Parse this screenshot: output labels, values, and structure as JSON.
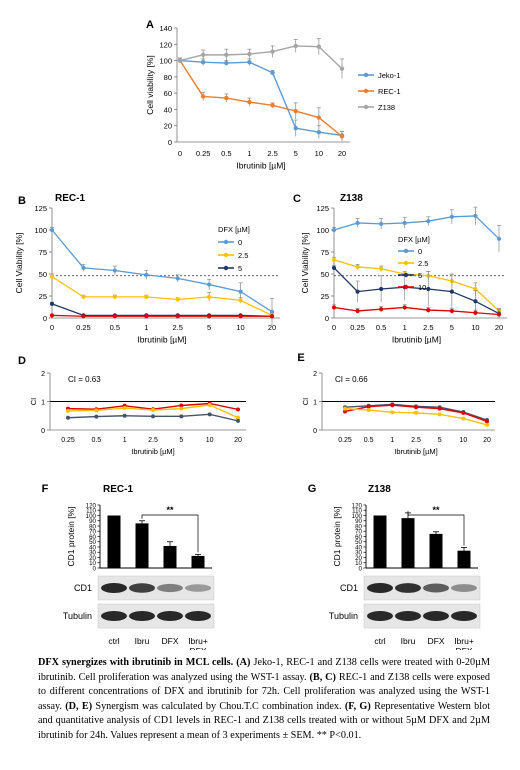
{
  "panels": {
    "A": {
      "letter": "A"
    },
    "B": {
      "letter": "B",
      "title": "REC-1"
    },
    "C": {
      "letter": "C",
      "title": "Z138"
    },
    "D": {
      "letter": "D",
      "ci_text": "CI = 0.63"
    },
    "E": {
      "letter": "E",
      "ci_text": "CI = 0.66"
    },
    "F": {
      "letter": "F",
      "title": "REC-1"
    },
    "G": {
      "letter": "G",
      "title": "Z138"
    }
  },
  "chart_data": [
    {
      "id": "A",
      "type": "line",
      "x": [
        "0",
        "0.25",
        "0.5",
        "1",
        "2.5",
        "5",
        "10",
        "20"
      ],
      "xlabel": "Ibrutinib [µM]",
      "ylabel": "Cell viability [%]",
      "ylim": [
        0,
        140
      ],
      "yticks": [
        0,
        20,
        40,
        60,
        80,
        100,
        120,
        140
      ],
      "legend": "right",
      "series": [
        {
          "name": "Jeko-1",
          "color": "#5b9bd5",
          "values": [
            100,
            98,
            97,
            98,
            85,
            17,
            12,
            8
          ],
          "err": [
            3,
            4,
            3,
            4,
            3,
            10,
            8,
            5
          ]
        },
        {
          "name": "REC-1",
          "color": "#ed7d31",
          "values": [
            100,
            56,
            54,
            49,
            45,
            38,
            30,
            7
          ],
          "err": [
            3,
            5,
            5,
            5,
            3,
            10,
            12,
            6
          ]
        },
        {
          "name": "Z138",
          "color": "#a5a5a5",
          "values": [
            100,
            107,
            107,
            108,
            111,
            118,
            117,
            90
          ],
          "err": [
            3,
            6,
            7,
            6,
            7,
            8,
            10,
            12
          ]
        }
      ]
    },
    {
      "id": "B",
      "type": "line",
      "x": [
        "0",
        "0.25",
        "0.5",
        "1",
        "2.5",
        "5",
        "10",
        "20"
      ],
      "xlabel": "Ibrutinib [µM]",
      "ylabel": "Cell Viability [%]",
      "ylim": [
        0,
        125
      ],
      "yticks": [
        0,
        25,
        50,
        75,
        100,
        125
      ],
      "legend_title": "DFX [µM]",
      "dashed_line": 48,
      "series": [
        {
          "name": "0",
          "color": "#5b9bd5",
          "values": [
            100,
            57,
            54,
            49,
            45,
            38,
            30,
            7
          ],
          "err": [
            3,
            4,
            5,
            5,
            4,
            6,
            10,
            15
          ]
        },
        {
          "name": "2.5",
          "color": "#ffc000",
          "values": [
            47,
            24,
            24,
            24,
            21,
            24,
            20,
            3
          ],
          "err": [
            3,
            2,
            2,
            2,
            2,
            5,
            3,
            2
          ]
        },
        {
          "name": "5",
          "color": "#203864",
          "values": [
            16,
            3,
            3,
            3,
            3,
            3,
            3,
            2
          ],
          "err": [
            2,
            1,
            1,
            1,
            1,
            1,
            1,
            1
          ]
        },
        {
          "name": "",
          "color": "#e00000",
          "values": [
            3,
            2,
            2,
            2,
            2,
            2,
            2,
            2
          ],
          "err": [
            0,
            0,
            0,
            0,
            0,
            0,
            0,
            0
          ]
        }
      ]
    },
    {
      "id": "C",
      "type": "line",
      "x": [
        "0",
        "0.25",
        "0.5",
        "1",
        "2.5",
        "5",
        "10",
        "20"
      ],
      "xlabel": "Ibrutinib [µM]",
      "ylabel": "Cell Viability [%]",
      "ylim": [
        0,
        125
      ],
      "yticks": [
        0,
        25,
        50,
        75,
        100,
        125
      ],
      "legend_title": "DFX [µM]",
      "dashed_line": 48,
      "series": [
        {
          "name": "0",
          "color": "#5b9bd5",
          "values": [
            100,
            108,
            107,
            108,
            110,
            115,
            116,
            90
          ],
          "err": [
            3,
            5,
            6,
            6,
            5,
            8,
            10,
            15
          ]
        },
        {
          "name": "2.5",
          "color": "#ffc000",
          "values": [
            66,
            58,
            56,
            50,
            48,
            42,
            33,
            8
          ],
          "err": [
            3,
            3,
            3,
            3,
            5,
            8,
            7,
            3
          ]
        },
        {
          "name": "5",
          "color": "#203864",
          "values": [
            57,
            30,
            33,
            35,
            33,
            30,
            19,
            5
          ],
          "err": [
            3,
            12,
            15,
            15,
            20,
            20,
            12,
            5
          ]
        },
        {
          "name": "10",
          "color": "#e00000",
          "values": [
            12,
            8,
            10,
            12,
            9,
            8,
            6,
            4
          ],
          "err": [
            3,
            3,
            3,
            3,
            3,
            3,
            3,
            2
          ]
        }
      ]
    },
    {
      "id": "D",
      "type": "line",
      "x": [
        "0.25",
        "0.5",
        "1",
        "2.5",
        "5",
        "10",
        "20"
      ],
      "xlabel": "Ibrutinib [µM]",
      "ylabel": "CI",
      "ylim": [
        0,
        2
      ],
      "yticks": [
        0,
        1,
        2
      ],
      "reference_line": 1,
      "series": [
        {
          "color": "#e00000",
          "values": [
            0.75,
            0.73,
            0.85,
            0.73,
            0.86,
            0.93,
            0.72
          ]
        },
        {
          "color": "#ffc000",
          "values": [
            0.67,
            0.69,
            0.77,
            0.7,
            0.75,
            0.88,
            0.43
          ]
        },
        {
          "color": "#44546a",
          "values": [
            0.43,
            0.47,
            0.5,
            0.48,
            0.48,
            0.55,
            0.32
          ]
        }
      ]
    },
    {
      "id": "E",
      "type": "line",
      "x": [
        "0.25",
        "0.5",
        "1",
        "2.5",
        "5",
        "10",
        "20"
      ],
      "xlabel": "Ibrutinib [µM]",
      "ylabel": "CI",
      "ylim": [
        0,
        2
      ],
      "yticks": [
        0,
        1,
        2
      ],
      "reference_line": 1,
      "series": [
        {
          "color": "#44546a",
          "values": [
            0.8,
            0.85,
            0.9,
            0.83,
            0.8,
            0.63,
            0.35
          ]
        },
        {
          "color": "#e00000",
          "values": [
            0.65,
            0.82,
            0.87,
            0.8,
            0.75,
            0.6,
            0.3
          ]
        },
        {
          "color": "#ffc000",
          "values": [
            0.75,
            0.7,
            0.62,
            0.6,
            0.55,
            0.4,
            0.18
          ]
        }
      ]
    },
    {
      "id": "F",
      "type": "bar",
      "categories": [
        "ctrl",
        "Ibru",
        "DFX",
        "Ibru+\nDFX"
      ],
      "values": [
        100,
        85,
        42,
        23
      ],
      "err": [
        0,
        5,
        8,
        3
      ],
      "ylabel": "CD1 protein [%]",
      "ylim": [
        0,
        120
      ],
      "yticks": [
        0,
        10,
        20,
        30,
        40,
        50,
        60,
        70,
        80,
        90,
        100,
        110,
        120
      ],
      "significance": "**",
      "blot_labels": [
        "CD1",
        "Tubulin"
      ]
    },
    {
      "id": "G",
      "type": "bar",
      "categories": [
        "ctrl",
        "Ibru",
        "DFX",
        "Ibru+\nDFX"
      ],
      "values": [
        100,
        95,
        65,
        33
      ],
      "err": [
        0,
        10,
        4,
        6
      ],
      "ylabel": "CD1 protein [%]",
      "ylim": [
        0,
        120
      ],
      "yticks": [
        0,
        10,
        20,
        30,
        40,
        50,
        60,
        70,
        80,
        90,
        100,
        110,
        120
      ],
      "significance": "**",
      "blot_labels": [
        "CD1",
        "Tubulin"
      ]
    }
  ],
  "caption": {
    "title": "DFX synergizes with ibrutinib in MCL cells.",
    "a_label": "(A)",
    "a_text": " Jeko-1, REC-1 and Z138 cells were treated with 0-20µM ibrutinib. Cell proliferation was analyzed using the WST-1 assay.",
    "bc_label": "(B, C)",
    "bc_text": " REC-1 and Z138 cells were exposed to different concentrations of DFX and ibrutinib for 72h. Cell proliferation was analyzed using the WST-1 assay.",
    "de_label": "(D, E)",
    "de_text": " Synergism was calculated by Chou.T.C combination index.",
    "fg_label": "(F, G)",
    "fg_text": " Representative Western blot and quantitative analysis of CD1 levels in REC-1 and Z138 cells treated with or without 5µM DFX and 2µM ibrutinib for 24h. Values represent a mean of 3 experiments ± SEM. ** P<0.01."
  }
}
